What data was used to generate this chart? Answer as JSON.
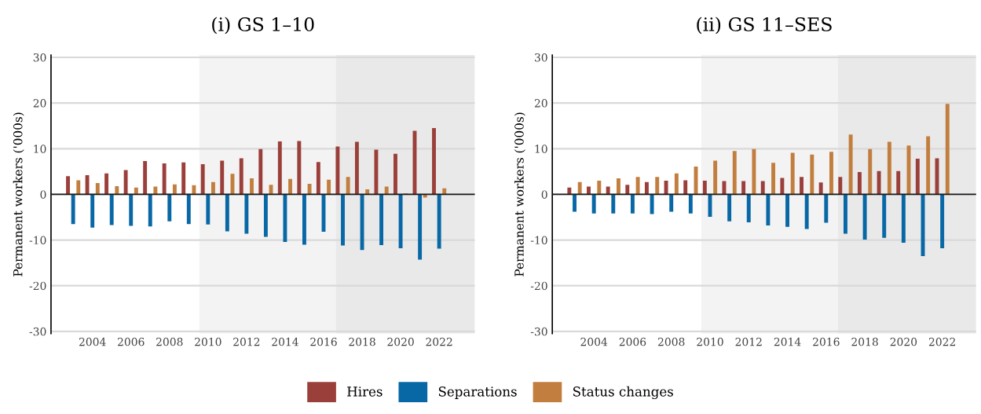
{
  "chart_data": [
    {
      "type": "bar",
      "title": "(i) GS 1–10",
      "ylabel": "Permanent workers ('000s)",
      "x": [
        2003,
        2004,
        2005,
        2006,
        2007,
        2008,
        2009,
        2010,
        2011,
        2012,
        2013,
        2014,
        2015,
        2016,
        2017,
        2018,
        2019,
        2020,
        2021,
        2022
      ],
      "series": [
        {
          "name": "Hires",
          "color": "#9b3f3a",
          "values": [
            4.0,
            4.2,
            4.6,
            5.3,
            7.3,
            6.8,
            7.0,
            6.6,
            7.4,
            7.9,
            9.9,
            11.6,
            11.7,
            7.1,
            10.5,
            11.5,
            9.8,
            8.9,
            13.9,
            14.5
          ]
        },
        {
          "name": "Separations",
          "color": "#0868a6",
          "values": [
            -6.5,
            -7.3,
            -6.7,
            -6.9,
            -7.0,
            -5.9,
            -6.5,
            -6.6,
            -8.1,
            -8.6,
            -9.3,
            -10.4,
            -11.0,
            -8.2,
            -11.2,
            -12.2,
            -11.1,
            -11.8,
            -14.3,
            -11.9
          ]
        },
        {
          "name": "Status changes",
          "color": "#c27e3e",
          "values": [
            3.1,
            2.5,
            1.8,
            1.5,
            1.7,
            2.2,
            2.0,
            2.7,
            4.5,
            3.5,
            2.1,
            3.4,
            2.3,
            3.2,
            3.8,
            1.1,
            1.7,
            0.2,
            -0.7,
            1.3
          ]
        }
      ],
      "xlim": [
        2001.85,
        2023.85
      ],
      "xticks": [
        2004,
        2006,
        2008,
        2010,
        2012,
        2014,
        2016,
        2018,
        2020,
        2022
      ],
      "ylim": [
        -30.5,
        30.5
      ],
      "yticks": [
        -30,
        -20,
        -10,
        0,
        10,
        20,
        30
      ],
      "ref_lines": [
        {
          "axis": "y",
          "value": 0,
          "color": "#1a1a1a"
        }
      ],
      "bands": [
        {
          "axis": "x",
          "from": 2009.55,
          "to": 2016.65,
          "color": "#f3f3f3"
        },
        {
          "axis": "x",
          "from": 2016.65,
          "to": 2023.85,
          "color": "#e9e9e9"
        }
      ],
      "grid": "y",
      "legend": "bottom"
    },
    {
      "type": "bar",
      "title": "(ii) GS 11–SES",
      "ylabel": "Permanent workers ('000s)",
      "x": [
        2003,
        2004,
        2005,
        2006,
        2007,
        2008,
        2009,
        2010,
        2011,
        2012,
        2013,
        2014,
        2015,
        2016,
        2017,
        2018,
        2019,
        2020,
        2021,
        2022
      ],
      "series": [
        {
          "color": "#9b3f3a",
          "values": [
            1.5,
            1.7,
            1.7,
            2.1,
            2.7,
            3.0,
            3.1,
            3.0,
            2.9,
            2.9,
            2.9,
            3.6,
            3.8,
            2.6,
            3.8,
            4.9,
            5.1,
            5.1,
            7.8,
            7.9
          ]
        },
        {
          "color": "#0868a6",
          "values": [
            -3.8,
            -4.2,
            -4.2,
            -4.2,
            -4.3,
            -3.8,
            -4.2,
            -4.9,
            -5.9,
            -6.1,
            -6.8,
            -7.1,
            -7.6,
            -6.2,
            -8.6,
            -9.9,
            -9.5,
            -10.6,
            -13.5,
            -11.8
          ]
        },
        {
          "color": "#c27e3e",
          "values": [
            2.7,
            3.0,
            3.5,
            3.8,
            3.8,
            4.6,
            6.1,
            7.4,
            9.5,
            9.9,
            6.9,
            9.1,
            8.7,
            9.3,
            13.1,
            9.9,
            11.5,
            10.7,
            12.7,
            19.8
          ]
        }
      ],
      "xlim": [
        2001.85,
        2023.75
      ],
      "xticks": [
        2004,
        2006,
        2008,
        2010,
        2012,
        2014,
        2016,
        2018,
        2020,
        2022
      ],
      "ylim": [
        -30.5,
        30.5
      ],
      "yticks": [
        -30,
        -20,
        -10,
        0,
        10,
        20,
        30
      ],
      "ref_lines": [
        {
          "axis": "y",
          "value": 0,
          "color": "#1a1a1a"
        }
      ],
      "bands": [
        {
          "axis": "x",
          "from": 2009.55,
          "to": 2016.6,
          "color": "#f3f3f3"
        },
        {
          "axis": "x",
          "from": 2016.6,
          "to": 2023.75,
          "color": "#e9e9e9"
        }
      ],
      "grid": "y"
    }
  ]
}
